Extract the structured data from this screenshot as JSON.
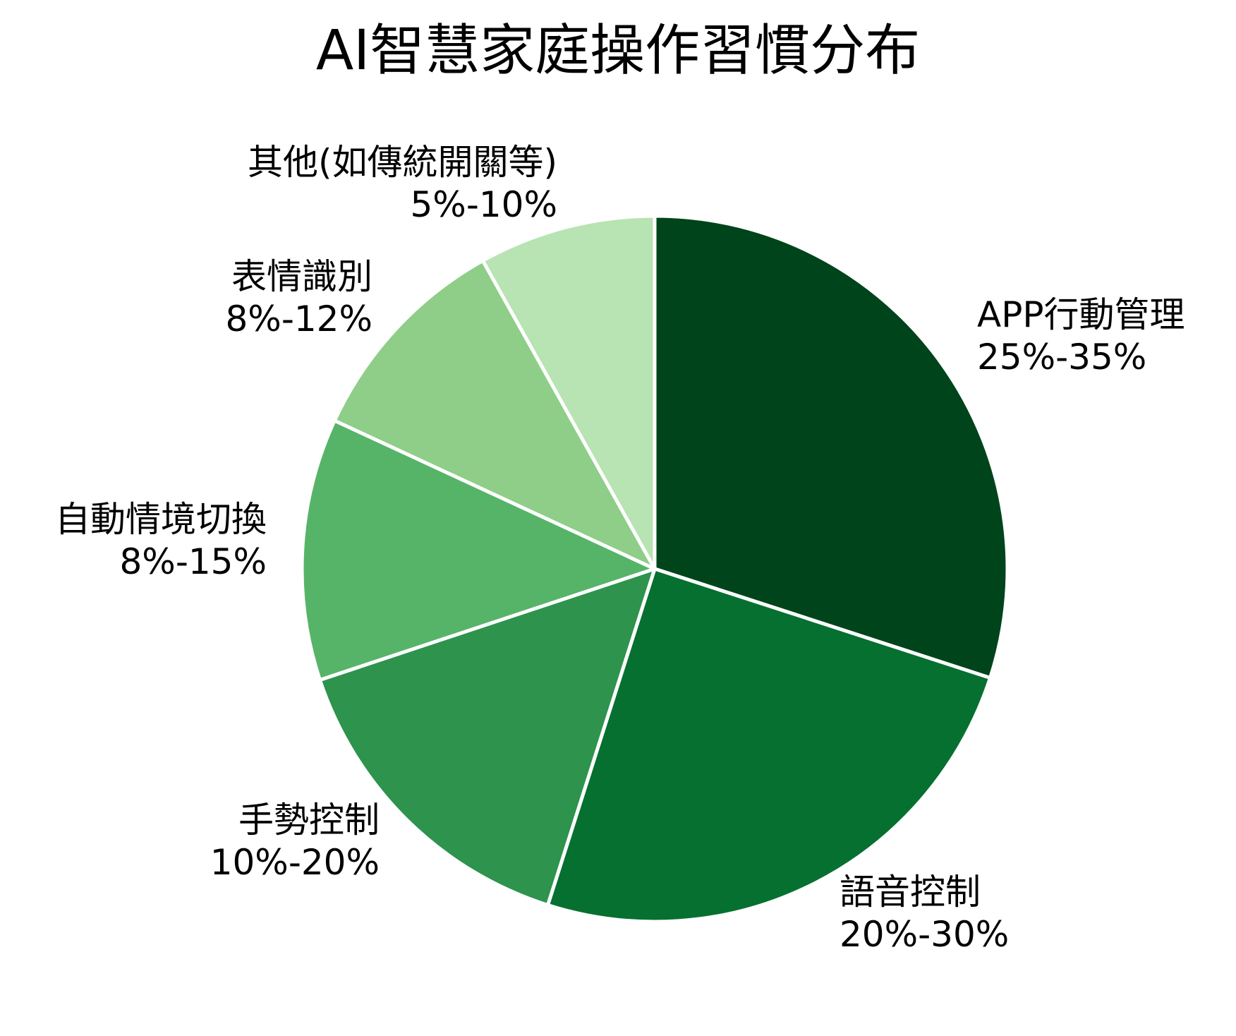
{
  "chart_data": {
    "type": "pie",
    "title": "AI智慧家庭操作習慣分布",
    "start_angle": "12 o'clock, clockwise",
    "slices": [
      {
        "label": "APP行動管理",
        "range": "25%-35%",
        "value": 30,
        "color": "#00441b"
      },
      {
        "label": "語音控制",
        "range": "20%-30%",
        "value": 24.9,
        "color": "#067030"
      },
      {
        "label": "手勢控制",
        "range": "10%-20%",
        "value": 15,
        "color": "#2d934d"
      },
      {
        "label": "自動情境切換",
        "range": "8%-15%",
        "value": 12,
        "color": "#56b468"
      },
      {
        "label": "表情識別",
        "range": "8%-12%",
        "value": 10,
        "color": "#8ece88"
      },
      {
        "label": "其他(如傳統開關等)",
        "range": "5%-10%",
        "value": 8.1,
        "color": "#b8e3b2"
      }
    ],
    "legend": "none (labels placed outside slices)",
    "edge_color": "#ffffff"
  },
  "labels": {
    "app": {
      "name": "APP行動管理",
      "range": "25%-35%"
    },
    "voice": {
      "name": "語音控制",
      "range": "20%-30%"
    },
    "gesture": {
      "name": "手勢控制",
      "range": "10%-20%"
    },
    "auto": {
      "name": "自動情境切換",
      "range": "8%-15%"
    },
    "expression": {
      "name": "表情識別",
      "range": "8%-12%"
    },
    "other": {
      "name": "其他(如傳統開關等)",
      "range": "5%-10%"
    }
  }
}
